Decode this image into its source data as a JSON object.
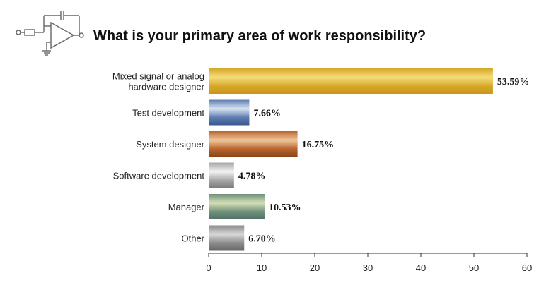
{
  "chart_data": {
    "type": "bar",
    "orientation": "horizontal",
    "title": "What is your primary area of work responsibility?",
    "categories": [
      [
        "Mixed signal or analog",
        "hardware designer"
      ],
      [
        "Test development"
      ],
      [
        "System designer"
      ],
      [
        "Software development"
      ],
      [
        "Manager"
      ],
      [
        "Other"
      ]
    ],
    "values": [
      53.59,
      7.66,
      16.75,
      4.78,
      10.53,
      6.7
    ],
    "value_labels": [
      "53.59%",
      "7.66%",
      "16.75%",
      "4.78%",
      "10.53%",
      "6.70%"
    ],
    "bar_colors": [
      [
        "#f4dc7a",
        "#d7a828",
        "#c9951a"
      ],
      [
        "#d8e4f4",
        "#5d7bb0",
        "#3a5790"
      ],
      [
        "#f0c79a",
        "#b8652e",
        "#8c4518"
      ],
      [
        "#f2f2f2",
        "#a6a6a6",
        "#7a7a7a"
      ],
      [
        "#d4e0b8",
        "#6e8f78",
        "#4f7066"
      ],
      [
        "#d8d8d8",
        "#8a8a8a",
        "#666666"
      ]
    ],
    "xlim": [
      0,
      60
    ],
    "xticks": [
      0,
      10,
      20,
      30,
      40,
      50,
      60
    ],
    "xlabel": "",
    "ylabel": "",
    "grid": false
  },
  "icons": {
    "logo": "op-amp-circuit-icon"
  }
}
